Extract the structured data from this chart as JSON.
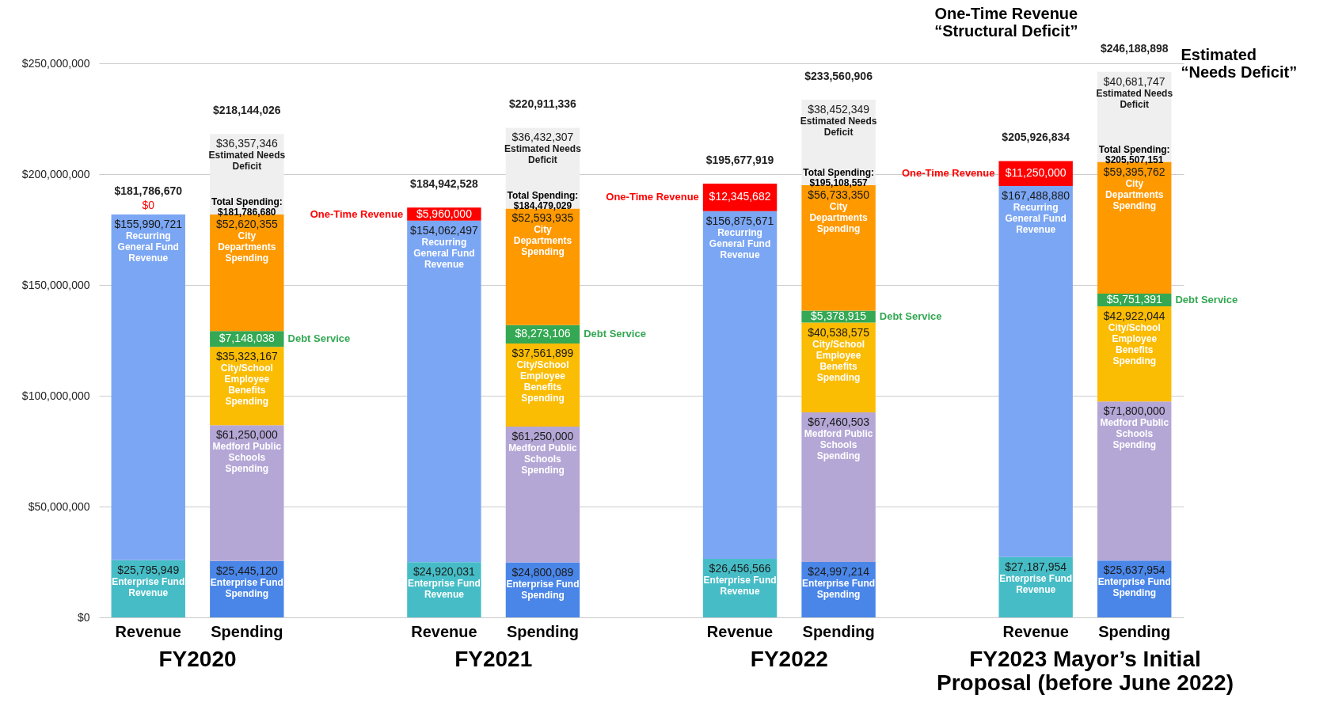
{
  "chart_data": {
    "type": "bar",
    "stacked": true,
    "grid": "y",
    "categories": [
      "Revenue",
      "Spending",
      null,
      "Revenue",
      "Spending",
      null,
      "Revenue",
      "Spending",
      null,
      "Revenue",
      "Spending"
    ],
    "series": [
      {
        "name": "Enterprise Fund Revenue",
        "color": "#46bdc6",
        "values": [
          25795949,
          null,
          null,
          24920031,
          null,
          null,
          26456566,
          null,
          null,
          27187954,
          null
        ],
        "value_labels": [
          "$25,795,949",
          null,
          null,
          "$24,920,031",
          null,
          null,
          "$26,456,566",
          null,
          null,
          "$27,187,954",
          null
        ]
      },
      {
        "name": "Recurring General Fund Revenue",
        "color": "#7ba6f3",
        "values": [
          155990721,
          null,
          null,
          154062497,
          null,
          null,
          156875671,
          null,
          null,
          167488880,
          null
        ],
        "value_labels": [
          "$155,990,721",
          null,
          null,
          "$154,062,497",
          null,
          null,
          "$156,875,671",
          null,
          null,
          "$167,488,880",
          null
        ]
      },
      {
        "name": "One-Time Revenue",
        "color": "#ff0000",
        "values": [
          0,
          null,
          null,
          5960000,
          null,
          null,
          12345682,
          null,
          null,
          11250000,
          null
        ],
        "value_labels": [
          "$0",
          null,
          null,
          "$5,960,000",
          null,
          null,
          "$12,345,682",
          null,
          null,
          "$11,250,000",
          null
        ]
      },
      {
        "name": "Enterprise Fund Spending",
        "color": "#4a86e8",
        "values": [
          null,
          25445120,
          null,
          null,
          24800089,
          null,
          null,
          24997214,
          null,
          null,
          25637954
        ],
        "value_labels": [
          null,
          "$25,445,120",
          null,
          null,
          "$24,800,089",
          null,
          null,
          "$24,997,214",
          null,
          null,
          "$25,637,954"
        ]
      },
      {
        "name": "Medford Public Schools Spending",
        "color": "#b4a7d6",
        "values": [
          null,
          61250000,
          null,
          null,
          61250000,
          null,
          null,
          67460503,
          null,
          null,
          71800000
        ],
        "value_labels": [
          null,
          "$61,250,000",
          null,
          null,
          "$61,250,000",
          null,
          null,
          "$67,460,503",
          null,
          null,
          "$71,800,000"
        ]
      },
      {
        "name": "City/School Employee Benefits Spending",
        "color": "#fbbc04",
        "values": [
          null,
          35323167,
          null,
          null,
          37561899,
          null,
          null,
          40538575,
          null,
          null,
          42922044
        ],
        "value_labels": [
          null,
          "$35,323,167",
          null,
          null,
          "$37,561,899",
          null,
          null,
          "$40,538,575",
          null,
          null,
          "$42,922,044"
        ]
      },
      {
        "name": "Debt Service",
        "color": "#34a853",
        "values": [
          null,
          7148038,
          null,
          null,
          8273106,
          null,
          null,
          5378915,
          null,
          null,
          5751391
        ],
        "value_labels": [
          null,
          "$7,148,038",
          null,
          null,
          "$8,273,106",
          null,
          null,
          "$5,378,915",
          null,
          null,
          "$5,751,391"
        ]
      },
      {
        "name": "City Departments Spending",
        "color": "#ff9900",
        "values": [
          null,
          52620355,
          null,
          null,
          52593935,
          null,
          null,
          56733350,
          null,
          null,
          59395762
        ],
        "value_labels": [
          null,
          "$52,620,355",
          null,
          null,
          "$52,593,935",
          null,
          null,
          "$56,733,350",
          null,
          null,
          "$59,395,762"
        ]
      },
      {
        "name": "Estimated Needs Deficit",
        "color": "#efefef",
        "values": [
          null,
          36357346,
          null,
          null,
          36432307,
          null,
          null,
          38452349,
          null,
          null,
          40681747
        ],
        "value_labels": [
          null,
          "$36,357,346",
          null,
          null,
          "$36,432,307",
          null,
          null,
          "$38,452,349",
          null,
          null,
          "$40,681,747"
        ]
      }
    ],
    "totals": [
      "$181,786,670",
      "$218,144,026",
      null,
      "$184,942,528",
      "$220,911,336",
      null,
      "$195,677,919",
      "$233,560,906",
      null,
      "$205,926,834",
      "$246,188,898"
    ],
    "ylim": [
      0,
      250000000
    ],
    "yticks": [
      {
        "value": 0,
        "label": "$0"
      },
      {
        "value": 50000000,
        "label": "$50,000,000"
      },
      {
        "value": 100000000,
        "label": "$100,000,000"
      },
      {
        "value": 150000000,
        "label": "$150,000,000"
      },
      {
        "value": 200000000,
        "label": "$200,000,000"
      },
      {
        "value": 250000000,
        "label": "$250,000,000"
      }
    ],
    "annotations": [
      "FY2020",
      "FY2021",
      "FY2022",
      "FY2023 Mayor’s Initial Proposal (before June 2022)",
      "Total Spending: $181,786,680",
      "Total Spending: $184,479,029",
      "Total Spending: $195,108,557",
      "Total Spending: $205,507,151",
      "One-Time Revenue “Structural Deficit”",
      "Estimated “Needs Deficit”"
    ]
  }
}
